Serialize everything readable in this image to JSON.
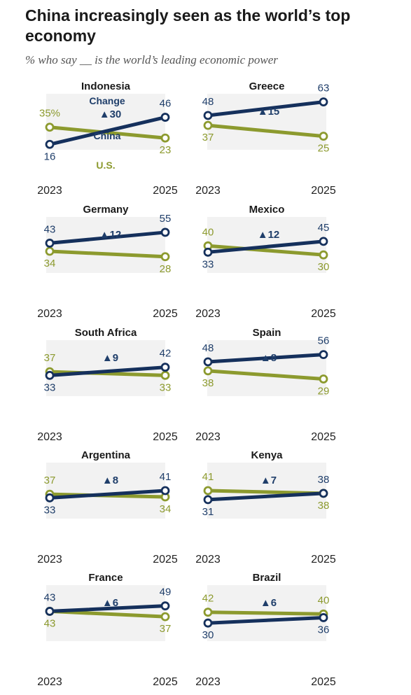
{
  "title": "China increasingly seen as the world’s top economy",
  "subtitle": "% who say __ is the world’s leading economic power",
  "legend": {
    "change_label": "Change",
    "china_label": "China",
    "us_label": "U.S."
  },
  "colors": {
    "china": "#15305c",
    "us": "#8c9a2e",
    "china_text": "#1f3e6a",
    "us_text": "#8c9a2e",
    "panel_bg": "#f2f2f2"
  },
  "chart_data": {
    "type": "line",
    "x": [
      "2023",
      "2025"
    ],
    "panels": [
      {
        "country": "Indonesia",
        "china": [
          16,
          46
        ],
        "us": [
          35,
          23
        ],
        "change": "▲30",
        "first_us_label": "35%"
      },
      {
        "country": "Greece",
        "china": [
          48,
          63
        ],
        "us": [
          37,
          25
        ],
        "change": "▲15"
      },
      {
        "country": "Germany",
        "china": [
          43,
          55
        ],
        "us": [
          34,
          28
        ],
        "change": "▲12"
      },
      {
        "country": "Mexico",
        "china": [
          33,
          45
        ],
        "us": [
          40,
          30
        ],
        "change": "▲12"
      },
      {
        "country": "South Africa",
        "china": [
          33,
          42
        ],
        "us": [
          37,
          33
        ],
        "change": "▲9"
      },
      {
        "country": "Spain",
        "china": [
          48,
          56
        ],
        "us": [
          38,
          29
        ],
        "change": "▲8"
      },
      {
        "country": "Argentina",
        "china": [
          33,
          41
        ],
        "us": [
          37,
          34
        ],
        "change": "▲8"
      },
      {
        "country": "Kenya",
        "china": [
          31,
          38
        ],
        "us": [
          41,
          38
        ],
        "change": "▲7"
      },
      {
        "country": "France",
        "china": [
          43,
          49
        ],
        "us": [
          43,
          37
        ],
        "change": "▲6"
      },
      {
        "country": "Brazil",
        "china": [
          30,
          36
        ],
        "us": [
          42,
          40
        ],
        "change": "▲6"
      }
    ]
  }
}
